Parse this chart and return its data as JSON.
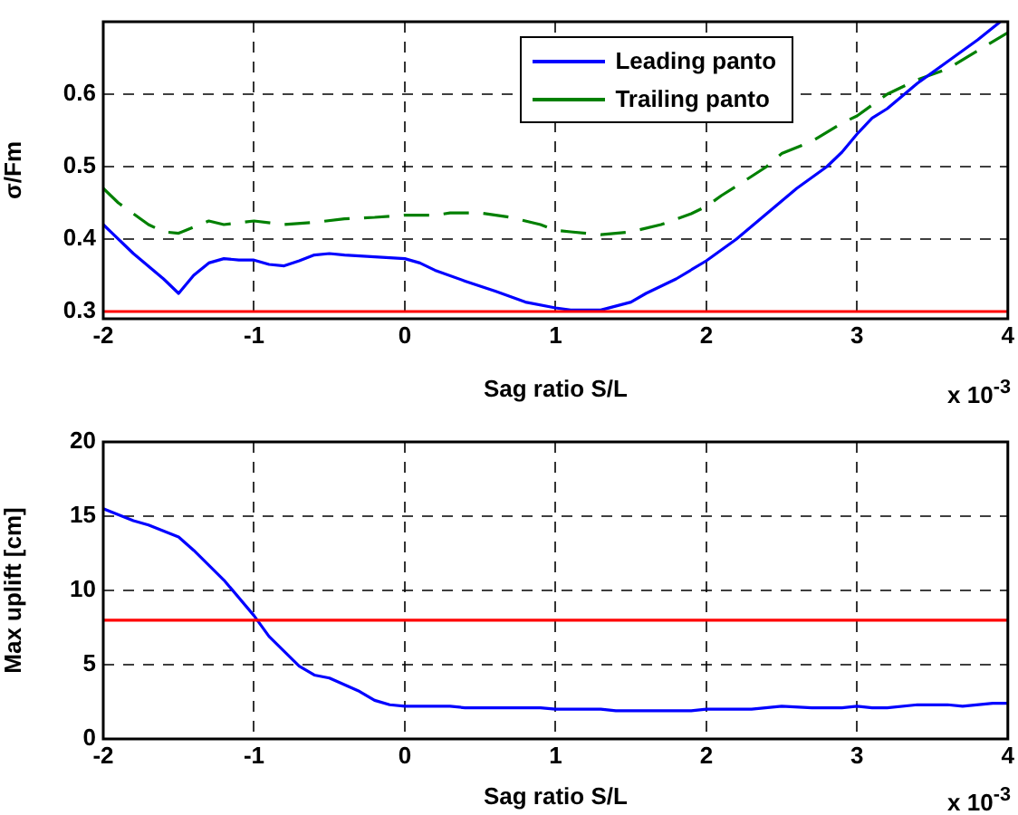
{
  "chart_data": [
    {
      "type": "line",
      "ylabel": "σ/Fm",
      "xlabel": "Sag ratio S/L",
      "xlim": [
        -2,
        4
      ],
      "xticks": [
        -2,
        -1,
        0,
        1,
        2,
        3,
        4
      ],
      "ylim": [
        0.29,
        0.7
      ],
      "yticks": [
        0.3,
        0.4,
        0.5,
        0.6
      ],
      "grid": true,
      "legend": "top",
      "annotations": [
        "x 10$^{-3}$"
      ],
      "ref_lines": [
        {
          "axis": "y",
          "value": 0.3,
          "color": "#ff0000"
        }
      ],
      "series": [
        {
          "name": "Leading panto",
          "color": "#0000ff",
          "line_style": "solid",
          "x": [
            -2,
            -1.8,
            -1.6,
            -1.5,
            -1.4,
            -1.3,
            -1.2,
            -1.1,
            -1,
            -0.9,
            -0.8,
            -0.7,
            -0.6,
            -0.5,
            -0.4,
            0,
            0.1,
            0.2,
            0.4,
            0.6,
            0.8,
            1,
            1.1,
            1.3,
            1.5,
            1.6,
            1.8,
            2,
            2.2,
            2.4,
            2.6,
            2.8,
            2.9,
            3,
            3.1,
            3.2,
            3.4,
            3.6,
            3.8,
            3.95
          ],
          "values": [
            0.42,
            0.38,
            0.345,
            0.325,
            0.35,
            0.367,
            0.373,
            0.371,
            0.371,
            0.365,
            0.363,
            0.37,
            0.378,
            0.38,
            0.378,
            0.373,
            0.367,
            0.357,
            0.342,
            0.328,
            0.313,
            0.305,
            0.302,
            0.302,
            0.313,
            0.325,
            0.345,
            0.37,
            0.4,
            0.435,
            0.47,
            0.5,
            0.52,
            0.545,
            0.567,
            0.58,
            0.615,
            0.645,
            0.675,
            0.7
          ]
        },
        {
          "name": "Trailing panto",
          "color": "#008000",
          "line_style": "dashed",
          "x": [
            -2,
            -1.9,
            -1.7,
            -1.6,
            -1.5,
            -1.3,
            -1.2,
            -1,
            -0.8,
            -0.6,
            -0.4,
            -0.2,
            0,
            0.2,
            0.3,
            0.5,
            0.7,
            0.9,
            1,
            1.1,
            1.3,
            1.5,
            1.7,
            1.9,
            2,
            2.1,
            2.2,
            2.4,
            2.5,
            2.7,
            2.9,
            3,
            3.2,
            3.4,
            3.6,
            3.8,
            4
          ],
          "values": [
            0.47,
            0.45,
            0.42,
            0.41,
            0.408,
            0.425,
            0.42,
            0.425,
            0.42,
            0.423,
            0.428,
            0.43,
            0.433,
            0.433,
            0.436,
            0.436,
            0.43,
            0.42,
            0.412,
            0.41,
            0.406,
            0.41,
            0.42,
            0.435,
            0.445,
            0.46,
            0.473,
            0.5,
            0.518,
            0.535,
            0.56,
            0.57,
            0.6,
            0.62,
            0.635,
            0.66,
            0.685
          ]
        }
      ]
    },
    {
      "type": "line",
      "ylabel": "Max uplift [cm]",
      "xlabel": "Sag ratio S/L",
      "xlim": [
        -2,
        4
      ],
      "xticks": [
        -2,
        -1,
        0,
        1,
        2,
        3,
        4
      ],
      "ylim": [
        0,
        20
      ],
      "yticks": [
        0,
        5,
        10,
        15,
        20
      ],
      "grid": true,
      "annotations": [
        "x 10$^{-3}$"
      ],
      "ref_lines": [
        {
          "axis": "y",
          "value": 8,
          "color": "#ff0000"
        }
      ],
      "series": [
        {
          "color": "#0000ff",
          "x": [
            -2,
            -1.8,
            -1.7,
            -1.5,
            -1.4,
            -1.2,
            -1,
            -0.9,
            -0.7,
            -0.6,
            -0.5,
            -0.3,
            -0.2,
            -0.1,
            0,
            0.3,
            0.4,
            0.9,
            1,
            1.3,
            1.4,
            1.9,
            2,
            2.3,
            2.5,
            2.7,
            2.9,
            3,
            3.1,
            3.2,
            3.4,
            3.6,
            3.7,
            3.9,
            4
          ],
          "values": [
            15.5,
            14.7,
            14.4,
            13.6,
            12.7,
            10.7,
            8.3,
            6.9,
            4.9,
            4.3,
            4.1,
            3.2,
            2.6,
            2.3,
            2.2,
            2.2,
            2.1,
            2.1,
            2,
            2,
            1.9,
            1.9,
            2,
            2,
            2.2,
            2.1,
            2.1,
            2.2,
            2.1,
            2.1,
            2.3,
            2.3,
            2.2,
            2.4,
            2.4
          ]
        }
      ]
    }
  ]
}
